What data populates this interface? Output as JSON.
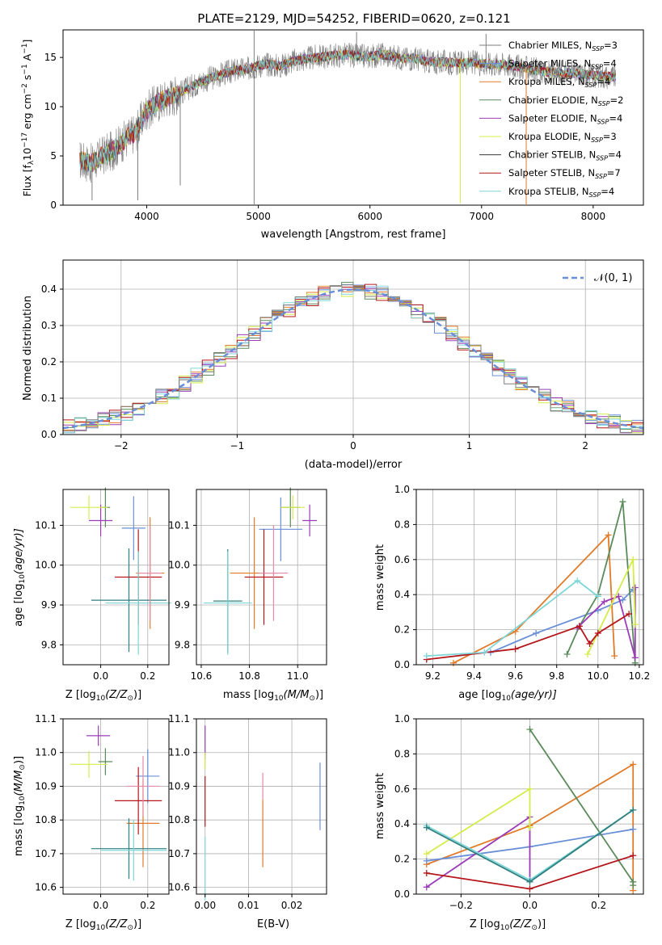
{
  "figure": {
    "title": "PLATE=2129, MJD=54252, FIBERID=0620, z=0.121",
    "colors": {
      "chabrier_miles": "#7f7f7f",
      "salpeter_miles": "#6a8fd8",
      "kroupa_miles": "#e07b2a",
      "chabrier_elodie": "#5a8a5a",
      "salpeter_elodie": "#9b3cb7",
      "kroupa_elodie": "#d4ec4a",
      "chabrier_stelib": "#3a3a3a",
      "salpeter_stelib": "#b5161b",
      "kroupa_stelib": "#7fd6d8",
      "pink": "#e88aa8",
      "teal": "#2f7f7f"
    }
  },
  "chart_data": [
    {
      "id": "spectrum",
      "type": "line",
      "xlabel": "wavelength [Angstrom, rest frame]",
      "ylabel": "Flux [f",
      "ylabel_sub": "λ",
      "ylabel_rest": "10",
      "ylabel_exp": "−17",
      "ylabel_units": " erg cm",
      "ylabel_exp2": "−2",
      "ylabel_s": " s",
      "ylabel_exp3": "−1",
      "ylabel_a": " A",
      "ylabel_exp4": "−1",
      "ylabel_close": "]",
      "xlim": [
        3250,
        8450
      ],
      "ylim": [
        0,
        17.8
      ],
      "xticks": [
        "4000",
        "5000",
        "6000",
        "7000",
        "8000"
      ],
      "yticks": [
        "0",
        "5",
        "10",
        "15"
      ],
      "grid": false,
      "legend_position": "right",
      "legend": [
        {
          "label": "Chabrier MILES, N",
          "sub": "SSP",
          "eq": "=3"
        },
        {
          "label": "Salpeter MILES, N",
          "sub": "SSP",
          "eq": "=4"
        },
        {
          "label": "Kroupa MILES, N",
          "sub": "SSP",
          "eq": "=4"
        },
        {
          "label": "Chabrier ELODIE, N",
          "sub": "SSP",
          "eq": "=2"
        },
        {
          "label": "Salpeter ELODIE, N",
          "sub": "SSP",
          "eq": "=4"
        },
        {
          "label": "Kroupa ELODIE, N",
          "sub": "SSP",
          "eq": "=3"
        },
        {
          "label": "Chabrier STELIB, N",
          "sub": "SSP",
          "eq": "=4"
        },
        {
          "label": "Salpeter STELIB, N",
          "sub": "SSP",
          "eq": "=7"
        },
        {
          "label": "Kroupa STELIB, N",
          "sub": "SSP",
          "eq": "=4"
        }
      ],
      "continuum": [
        [
          3400,
          4.6
        ],
        [
          3500,
          4.2
        ],
        [
          3600,
          5.0
        ],
        [
          3700,
          5.6
        ],
        [
          3800,
          6.6
        ],
        [
          3900,
          7.4
        ],
        [
          4000,
          9.6
        ],
        [
          4100,
          10.4
        ],
        [
          4200,
          11.0
        ],
        [
          4300,
          11.4
        ],
        [
          4400,
          12.1
        ],
        [
          4500,
          12.6
        ],
        [
          4600,
          13.0
        ],
        [
          4700,
          13.4
        ],
        [
          4800,
          13.7
        ],
        [
          4900,
          13.8
        ],
        [
          5000,
          14.2
        ],
        [
          5100,
          14.3
        ],
        [
          5200,
          14.1
        ],
        [
          5300,
          14.6
        ],
        [
          5400,
          14.8
        ],
        [
          5500,
          15.0
        ],
        [
          5600,
          15.1
        ],
        [
          5700,
          15.2
        ],
        [
          5800,
          15.3
        ],
        [
          5900,
          15.1
        ],
        [
          6000,
          15.1
        ],
        [
          6100,
          15.3
        ],
        [
          6200,
          15.1
        ],
        [
          6300,
          14.9
        ],
        [
          6400,
          14.9
        ],
        [
          6500,
          14.6
        ],
        [
          6600,
          14.5
        ],
        [
          6700,
          14.5
        ],
        [
          6800,
          14.4
        ],
        [
          6900,
          14.5
        ],
        [
          7000,
          14.4
        ],
        [
          7100,
          14.3
        ],
        [
          7200,
          14.3
        ],
        [
          7300,
          14.1
        ],
        [
          7400,
          13.9
        ],
        [
          7500,
          13.7
        ],
        [
          7600,
          13.5
        ],
        [
          7700,
          13.4
        ],
        [
          7800,
          13.4
        ],
        [
          7900,
          13.3
        ],
        [
          8000,
          13.2
        ],
        [
          8100,
          13.1
        ],
        [
          8200,
          13.0
        ]
      ],
      "spikes": [
        [
          4962,
          0
        ],
        [
          4962,
          17.8
        ],
        [
          5880,
          17.6
        ],
        [
          6810,
          0.2
        ],
        [
          7400,
          0
        ],
        [
          7040,
          17.4
        ],
        [
          3510,
          0.5
        ],
        [
          3920,
          0.5
        ],
        [
          4300,
          2.0
        ]
      ]
    },
    {
      "id": "residuals",
      "type": "histogram",
      "xlabel": "(data-model)/error",
      "ylabel": "Normed distribution",
      "xlim": [
        -2.5,
        2.5
      ],
      "ylim": [
        0,
        0.48
      ],
      "xticks": [
        "−2",
        "−1",
        "0",
        "1",
        "2"
      ],
      "yticks": [
        "0.0",
        "0.1",
        "0.2",
        "0.3",
        "0.4"
      ],
      "grid": true,
      "legend_position": "top-right",
      "legend": [
        {
          "label": "𝒩(0, 1)"
        }
      ],
      "bin_width": 0.1
    },
    {
      "id": "age-vs-Z",
      "type": "scatter",
      "xlabel": "Z [log",
      "xlabel_sub": "10",
      "xlabel_rest": "(Z/Z",
      "xlabel_sub2": "⊙",
      "xlabel_close": ")]",
      "ylabel": "age  [log",
      "ylabel_sub": "10",
      "ylabel_rest": "(age/yr)]",
      "xlim": [
        -0.16,
        0.29
      ],
      "ylim": [
        9.75,
        10.19
      ],
      "xticks": [
        "0.0",
        "0.2"
      ],
      "yticks": [
        "9.8",
        "9.9",
        "10.0",
        "10.1"
      ],
      "points": [
        {
          "x": 0.14,
          "y": 10.093,
          "xerr": 0.05,
          "yerr": 0.08
        },
        {
          "x": 0.21,
          "y": 9.98,
          "xerr": 0.06,
          "yerr": 0.14
        },
        {
          "x": 0.02,
          "y": 10.145,
          "xerr": 0.02,
          "yerr": 0.05
        },
        {
          "x": 0.0,
          "y": 10.112,
          "xerr": 0.05,
          "yerr": 0.04
        },
        {
          "x": -0.05,
          "y": 10.145,
          "xerr": 0.08,
          "yerr": 0.03
        },
        {
          "x": 0.12,
          "y": 9.912,
          "xerr": 0.16,
          "yerr": 0.13
        },
        {
          "x": 0.16,
          "y": 9.97,
          "xerr": 0.1,
          "yerr": 0.12
        },
        {
          "x": 0.16,
          "y": 9.905,
          "xerr": 0.14,
          "yerr": 0.13
        },
        {
          "x": 0.21,
          "y": 9.98,
          "xerr": 0.05,
          "yerr": 0.12
        }
      ]
    },
    {
      "id": "age-vs-mass",
      "type": "scatter",
      "xlabel": "mass [log",
      "xlabel_sub": "10",
      "xlabel_rest": "(M/M",
      "xlabel_sub2": "⊙",
      "xlabel_close": ")]",
      "xlim": [
        10.58,
        11.12
      ],
      "ylim": [
        9.75,
        10.19
      ],
      "xticks": [
        "10.6",
        "10.8",
        "11.0"
      ],
      "yticks": [
        "9.8",
        "9.9",
        "10.0",
        "10.1"
      ]
    },
    {
      "id": "weight-vs-age",
      "type": "line",
      "xlabel": "age  [log",
      "xlabel_sub": "10",
      "xlabel_rest": "(age/yr)]",
      "ylabel": "mass weight",
      "xlim": [
        9.12,
        10.22
      ],
      "ylim": [
        0,
        1.0
      ],
      "xticks": [
        "9.2",
        "9.4",
        "9.6",
        "9.8",
        "10.0",
        "10.2"
      ],
      "yticks": [
        "0.0",
        "0.2",
        "0.4",
        "0.6",
        "0.8",
        "1.0"
      ],
      "grid": true,
      "series": [
        {
          "x": [
            9.3,
            9.6,
            10.05,
            10.08
          ],
          "y": [
            0.01,
            0.19,
            0.74,
            0.05
          ]
        },
        {
          "x": [
            9.48,
            9.7,
            10.0,
            10.12,
            10.17
          ],
          "y": [
            0.07,
            0.18,
            0.31,
            0.37,
            0.43
          ]
        },
        {
          "x": [
            9.85,
            9.91,
            10.0,
            10.12,
            10.18
          ],
          "y": [
            0.06,
            0.22,
            0.4,
            0.93,
            0.01
          ]
        },
        {
          "x": [
            9.9,
            10.03,
            10.1,
            10.18,
            10.18
          ],
          "y": [
            0.21,
            0.36,
            0.39,
            0.04,
            0.44
          ]
        },
        {
          "x": [
            9.95,
            10.17,
            10.18
          ],
          "y": [
            0.06,
            0.6,
            0.23
          ]
        },
        {
          "x": [
            9.17,
            9.6,
            9.91,
            9.96,
            10.0,
            10.15
          ],
          "y": [
            0.03,
            0.09,
            0.22,
            0.12,
            0.18,
            0.29
          ]
        },
        {
          "x": [
            9.17,
            9.45,
            9.9,
            10.0
          ],
          "y": [
            0.05,
            0.07,
            0.48,
            0.39
          ]
        }
      ]
    },
    {
      "id": "mass-vs-Z",
      "type": "scatter",
      "xlabel": "Z [log",
      "xlabel_sub": "10",
      "xlabel_rest": "(Z/Z",
      "xlabel_sub2": "⊙",
      "xlabel_close": ")]",
      "ylabel": "mass [log",
      "ylabel_sub": "10",
      "ylabel_rest": "(M/M",
      "ylabel_sub2": "⊙",
      "ylabel_close": ")]",
      "xlim": [
        -0.16,
        0.29
      ],
      "ylim": [
        10.58,
        11.1
      ],
      "xticks": [
        "0.0",
        "0.2"
      ],
      "yticks": [
        "10.6",
        "10.7",
        "10.8",
        "10.9",
        "11.0",
        "11.1"
      ]
    },
    {
      "id": "mass-vs-ebv",
      "type": "scatter",
      "xlabel": "E(B-V)",
      "xlim": [
        -0.002,
        0.028
      ],
      "ylim": [
        10.58,
        11.1
      ],
      "xticks": [
        "0.00",
        "0.01",
        "0.02"
      ],
      "yticks": [
        "10.6",
        "10.7",
        "10.8",
        "10.9",
        "11.0",
        "11.1"
      ]
    },
    {
      "id": "weight-vs-Z",
      "type": "line",
      "xlabel": "Z [log",
      "xlabel_sub": "10",
      "xlabel_rest": "(Z/Z",
      "xlabel_sub2": "⊙",
      "xlabel_close": ")]",
      "ylabel": "mass weight",
      "xlim": [
        -0.33,
        0.33
      ],
      "ylim": [
        0,
        1.0
      ],
      "xticks": [
        "−0.2",
        "0.0",
        "0.2"
      ],
      "yticks": [
        "0.0",
        "0.2",
        "0.4",
        "0.6",
        "0.8",
        "1.0"
      ],
      "grid": true,
      "series": [
        {
          "x": [
            -0.3,
            0.0,
            0.3,
            0.3
          ],
          "y": [
            0.17,
            0.39,
            0.74,
            0.02
          ]
        },
        {
          "x": [
            -0.3,
            0.0,
            0.3
          ],
          "y": [
            0.19,
            0.27,
            0.37
          ]
        },
        {
          "x": [
            0.0,
            0.3,
            0.3
          ],
          "y": [
            0.94,
            0.07,
            0.05
          ]
        },
        {
          "x": [
            -0.3,
            0.0,
            0.0
          ],
          "y": [
            0.04,
            0.44,
            0.08
          ]
        },
        {
          "x": [
            -0.3,
            0.0,
            0.0
          ],
          "y": [
            0.23,
            0.6,
            0.38
          ]
        },
        {
          "x": [
            -0.3,
            0.0,
            0.3
          ],
          "y": [
            0.12,
            0.03,
            0.22
          ]
        },
        {
          "x": [
            -0.3,
            0.0,
            0.3
          ],
          "y": [
            0.39,
            0.08,
            0.48
          ]
        },
        {
          "x": [
            -0.3,
            0.0,
            0.3
          ],
          "y": [
            0.38,
            0.07,
            0.48
          ]
        }
      ]
    }
  ]
}
